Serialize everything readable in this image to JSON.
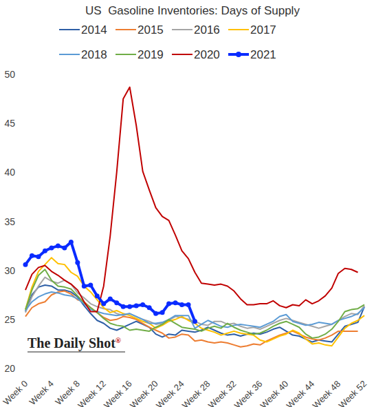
{
  "chart_data": {
    "type": "line",
    "title": "US  Gasoline Inventories: Days of Supply",
    "annotation": "The Daily Shot®",
    "x": [
      0,
      1,
      2,
      3,
      4,
      5,
      6,
      7,
      8,
      9,
      10,
      11,
      12,
      13,
      14,
      15,
      16,
      17,
      18,
      19,
      20,
      21,
      22,
      23,
      24,
      25,
      26,
      27,
      28,
      29,
      30,
      31,
      32,
      33,
      34,
      35,
      36,
      37,
      38,
      39,
      40,
      41,
      42,
      43,
      44,
      45,
      46,
      47,
      48,
      49,
      50,
      51,
      52
    ],
    "xlim": [
      0,
      52
    ],
    "xticks": [
      {
        "value": 0,
        "label": "Week 0"
      },
      {
        "value": 4,
        "label": "Week 4"
      },
      {
        "value": 8,
        "label": "Week 8"
      },
      {
        "value": 12,
        "label": "Week 12"
      },
      {
        "value": 16,
        "label": "Week 16"
      },
      {
        "value": 20,
        "label": "Week 20"
      },
      {
        "value": 24,
        "label": "Week 24"
      },
      {
        "value": 28,
        "label": "Week 28"
      },
      {
        "value": 32,
        "label": "Week 32"
      },
      {
        "value": 36,
        "label": "Week 36"
      },
      {
        "value": 40,
        "label": "Week 40"
      },
      {
        "value": 44,
        "label": "Week 44"
      },
      {
        "value": 48,
        "label": "Week 48"
      },
      {
        "value": 52,
        "label": "Week 52"
      }
    ],
    "ylim": [
      20,
      50
    ],
    "yticks": [
      20,
      25,
      30,
      35,
      40,
      45,
      50
    ],
    "grid": false,
    "legend": "top",
    "series": [
      {
        "name": "2014",
        "color": "#2e5fa6",
        "values": [
          25.8,
          27.5,
          28.3,
          28.5,
          28.4,
          28.0,
          28.0,
          27.8,
          27.3,
          26.4,
          25.6,
          24.9,
          24.6,
          24.1,
          23.9,
          24.2,
          24.5,
          24.8,
          24.5,
          24.2,
          23.5,
          23.2,
          23.5,
          23.4,
          23.9,
          23.8,
          23.7,
          23.9,
          24.2,
          23.9,
          23.6,
          23.4,
          23.5,
          23.3,
          23.5,
          23.6,
          23.5,
          23.7,
          24.0,
          24.2,
          23.8,
          23.4,
          23.3,
          23.0,
          22.7,
          22.9,
          22.8,
          22.7,
          23.5,
          24.3,
          24.5,
          24.7,
          26.3
        ]
      },
      {
        "name": "2015",
        "color": "#ed7d31",
        "values": [
          25.3,
          26.2,
          26.6,
          26.8,
          27.5,
          27.8,
          27.9,
          27.6,
          27.0,
          26.8,
          26.2,
          25.7,
          25.2,
          24.9,
          25.0,
          25.3,
          25.2,
          25.0,
          24.6,
          24.2,
          23.9,
          23.6,
          23.1,
          23.2,
          23.5,
          23.4,
          22.8,
          22.9,
          22.7,
          22.6,
          22.7,
          22.6,
          22.4,
          22.2,
          22.3,
          22.5,
          22.4,
          22.8,
          23.1,
          23.4,
          23.6,
          23.8,
          23.5,
          23.2,
          23.0,
          22.9,
          23.1,
          23.4,
          23.8,
          23.8,
          23.8,
          23.8,
          null
        ]
      },
      {
        "name": "2016",
        "color": "#a5a5a5",
        "values": [
          25.7,
          27.3,
          28.4,
          29.3,
          28.9,
          28.7,
          29.0,
          28.6,
          27.7,
          27.2,
          26.6,
          26.3,
          26.1,
          26.0,
          25.6,
          25.4,
          25.6,
          25.3,
          25.0,
          24.8,
          24.5,
          24.6,
          24.9,
          25.3,
          25.2,
          25.0,
          24.8,
          24.5,
          24.4,
          24.8,
          24.8,
          24.5,
          24.6,
          24.3,
          24.1,
          24.2,
          24.0,
          24.3,
          24.6,
          24.9,
          25.1,
          24.9,
          24.7,
          24.5,
          24.3,
          24.1,
          24.3,
          24.5,
          24.9,
          25.3,
          25.6,
          25.5,
          26.4
        ]
      },
      {
        "name": "2017",
        "color": "#ffc000",
        "values": [
          26.0,
          28.3,
          29.9,
          30.6,
          31.3,
          30.7,
          30.6,
          29.8,
          29.4,
          28.4,
          27.8,
          27.0,
          26.2,
          25.7,
          25.9,
          25.6,
          25.4,
          25.1,
          24.8,
          24.6,
          24.1,
          24.4,
          24.8,
          25.0,
          25.3,
          24.9,
          24.6,
          24.1,
          23.9,
          23.7,
          23.4,
          23.6,
          23.8,
          23.6,
          23.5,
          23.4,
          22.9,
          22.7,
          23.0,
          23.3,
          23.5,
          23.9,
          23.6,
          23.0,
          22.5,
          22.6,
          22.4,
          22.3,
          23.2,
          24.1,
          24.6,
          24.9,
          25.4
        ]
      },
      {
        "name": "2018",
        "color": "#5b9bd5",
        "values": [
          25.9,
          26.8,
          27.3,
          27.6,
          27.8,
          27.7,
          27.5,
          27.4,
          27.1,
          26.6,
          26.0,
          25.8,
          25.6,
          25.5,
          25.4,
          25.5,
          25.6,
          25.3,
          25.0,
          24.6,
          24.6,
          24.7,
          25.0,
          25.4,
          25.4,
          25.4,
          24.1,
          24.5,
          24.9,
          24.6,
          24.3,
          24.2,
          24.4,
          24.5,
          24.4,
          24.3,
          24.2,
          24.5,
          24.8,
          25.3,
          25.5,
          24.8,
          24.6,
          24.4,
          24.5,
          24.7,
          24.6,
          24.5,
          24.9,
          25.1,
          25.3,
          25.6,
          26.2
        ]
      },
      {
        "name": "2019",
        "color": "#70ad47",
        "values": [
          26.0,
          28.0,
          29.5,
          30.1,
          29.0,
          28.4,
          28.3,
          28.1,
          27.4,
          26.7,
          26.2,
          25.7,
          25.1,
          24.6,
          24.4,
          24.3,
          23.9,
          24.0,
          23.9,
          23.8,
          24.2,
          24.5,
          25.0,
          24.6,
          24.2,
          24.1,
          24.0,
          23.8,
          24.1,
          24.3,
          24.1,
          24.6,
          24.2,
          23.9,
          23.7,
          23.5,
          23.6,
          23.9,
          24.3,
          24.6,
          24.8,
          24.5,
          24.2,
          23.5,
          23.1,
          23.2,
          23.5,
          24.0,
          24.8,
          25.8,
          26.0,
          26.1,
          26.5
        ]
      },
      {
        "name": "2020",
        "color": "#c00000",
        "values": [
          28.0,
          29.6,
          30.3,
          30.5,
          29.9,
          29.5,
          29.0,
          28.6,
          28.0,
          26.8,
          25.8,
          25.8,
          28.4,
          33.5,
          40.0,
          47.5,
          48.7,
          44.8,
          40.1,
          38.2,
          36.4,
          35.5,
          35.1,
          33.6,
          32.0,
          31.2,
          29.8,
          28.7,
          28.6,
          28.5,
          28.6,
          28.4,
          27.9,
          27.1,
          26.5,
          26.5,
          26.6,
          26.6,
          26.9,
          26.4,
          26.2,
          26.5,
          26.4,
          27.0,
          26.6,
          26.9,
          27.4,
          28.2,
          29.7,
          30.2,
          30.1,
          29.8,
          null
        ]
      },
      {
        "name": "2021",
        "color": "#0a2bff",
        "marker": "circle",
        "values": [
          30.6,
          31.5,
          31.4,
          32.0,
          32.3,
          32.5,
          32.3,
          32.9,
          30.8,
          28.4,
          28.5,
          27.4,
          26.6,
          27.1,
          26.7,
          26.3,
          26.3,
          26.4,
          26.5,
          26.2,
          25.6,
          25.7,
          26.6,
          26.7,
          26.5,
          26.5,
          24.8,
          null,
          null,
          null,
          null,
          null,
          null,
          null,
          null,
          null,
          null,
          null,
          null,
          null,
          null,
          null,
          null,
          null,
          null,
          null,
          null,
          null,
          null,
          null,
          null,
          null,
          null
        ]
      }
    ]
  }
}
